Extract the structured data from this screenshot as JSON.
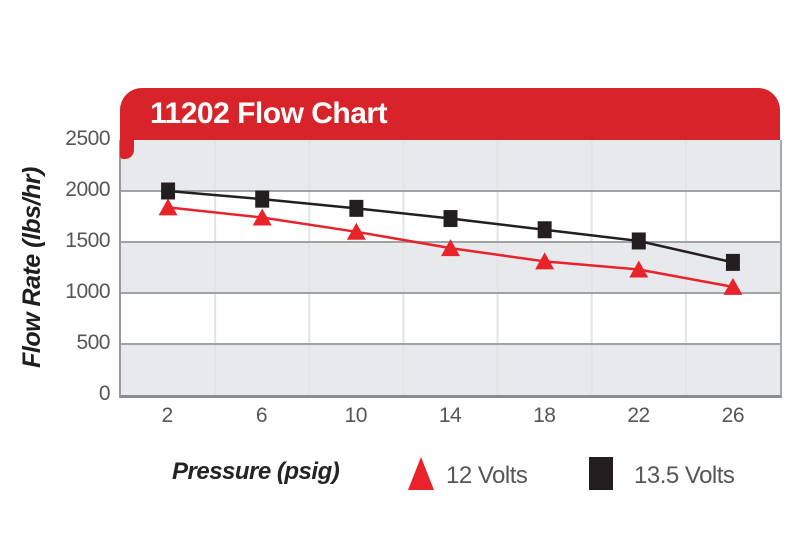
{
  "banner": {
    "title": "11202 Flow Chart"
  },
  "axes": {
    "y_title": "Flow Rate (lbs/hr)",
    "x_title": "Pressure (psig)"
  },
  "legend": {
    "items": [
      {
        "label": "12 Volts",
        "marker": "triangle"
      },
      {
        "label": "13.5 Volts",
        "marker": "square"
      }
    ]
  },
  "colors": {
    "banner_red": "#d8232a",
    "series_red": "#e8232b",
    "series_black": "#231f20",
    "band_gray": "#e8e9ec",
    "grid_horizontal": "#a0a2a5",
    "grid_vertical": "#e2e3e5",
    "tick_text": "#55565a"
  },
  "chart_data": {
    "type": "line",
    "title": "11202 Flow Chart",
    "xlabel": "Pressure (psig)",
    "ylabel": "Flow Rate (lbs/hr)",
    "x": [
      2,
      6,
      10,
      14,
      18,
      22,
      26
    ],
    "series": [
      {
        "name": "12 Volts",
        "marker": "triangle",
        "color": "#e8232b",
        "values": [
          1840,
          1740,
          1600,
          1440,
          1310,
          1230,
          1060
        ]
      },
      {
        "name": "13.5 Volts",
        "marker": "square",
        "color": "#231f20",
        "values": [
          2000,
          1920,
          1830,
          1730,
          1620,
          1510,
          1300
        ]
      }
    ],
    "ylim": [
      0,
      2500
    ],
    "yticks": [
      0,
      500,
      1000,
      1500,
      2000,
      2500
    ],
    "grid": "horizontal gridlines at yticks, vertical column separators, alternating gray/white horizontal bands",
    "legend_position": "bottom"
  }
}
